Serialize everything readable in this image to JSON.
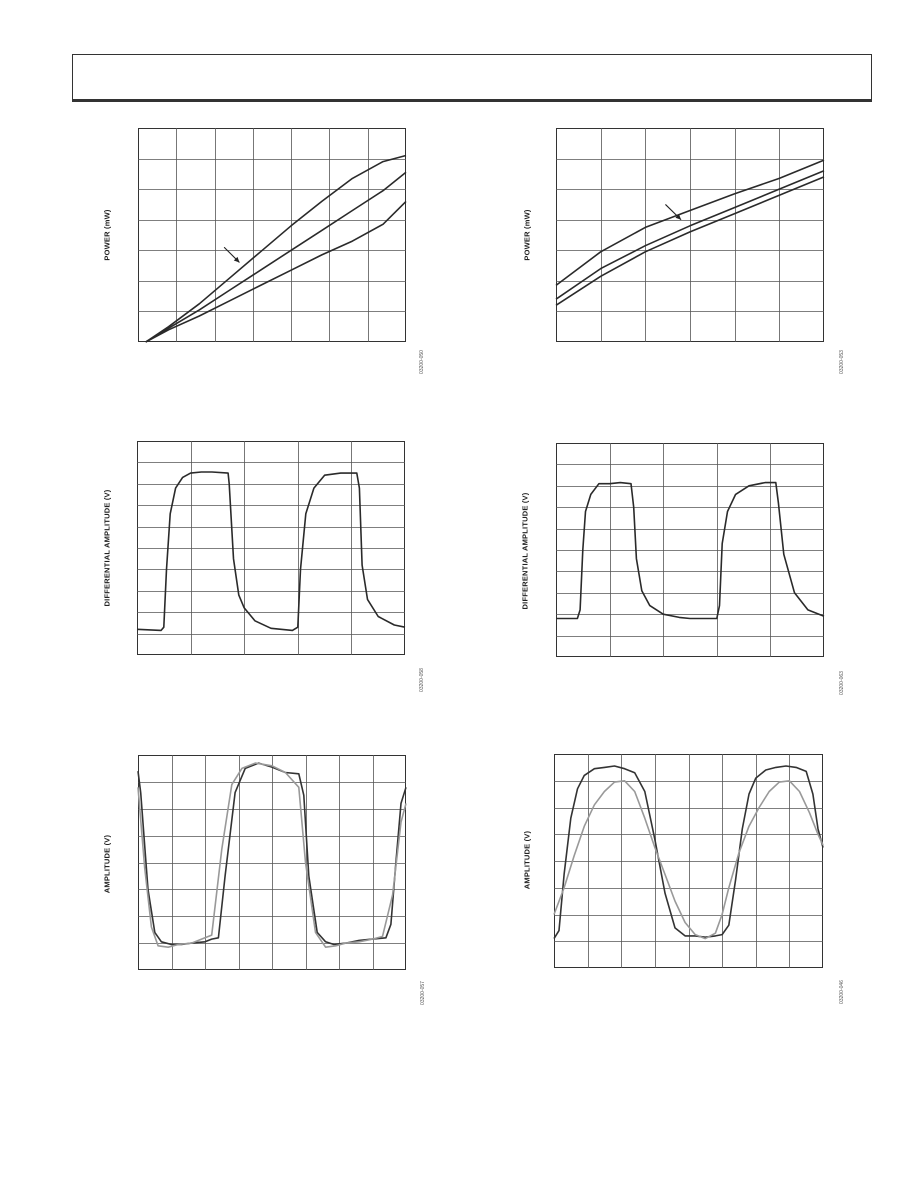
{
  "header": {
    "title": ""
  },
  "chart_data": [
    {
      "type": "line",
      "ylabel": "POWER (mW)",
      "figure_id": "03200-050",
      "grid": true,
      "xlim": [
        0,
        7
      ],
      "ylim": [
        0,
        7
      ],
      "series": [
        {
          "x": [
            0.2,
            0.8,
            1.6,
            2.4,
            3.2,
            4.0,
            4.8,
            5.6,
            6.4,
            7.0
          ],
          "y": [
            0.0,
            0.5,
            1.25,
            2.1,
            2.95,
            3.8,
            4.6,
            5.35,
            5.9,
            6.1
          ]
        },
        {
          "x": [
            0.2,
            0.8,
            1.6,
            2.4,
            3.2,
            4.0,
            4.8,
            5.6,
            6.4,
            7.0
          ],
          "y": [
            0.0,
            0.45,
            1.05,
            1.7,
            2.35,
            3.0,
            3.65,
            4.3,
            4.95,
            5.55
          ]
        },
        {
          "x": [
            0.2,
            0.8,
            1.6,
            2.4,
            3.2,
            4.0,
            4.8,
            5.6,
            6.4,
            7.0
          ],
          "y": [
            0.0,
            0.4,
            0.85,
            1.35,
            1.85,
            2.35,
            2.85,
            3.3,
            3.85,
            4.6
          ]
        }
      ],
      "annotations": [
        {
          "type": "arrow",
          "from": [
            2.25,
            3.1
          ],
          "to": [
            2.65,
            2.6
          ]
        }
      ]
    },
    {
      "type": "line",
      "ylabel": "POWER (mW)",
      "figure_id": "03200-053",
      "grid": true,
      "xlim": [
        0,
        6
      ],
      "ylim": [
        0,
        7
      ],
      "series": [
        {
          "x": [
            0,
            1,
            2,
            3,
            4,
            5,
            6
          ],
          "y": [
            1.85,
            2.95,
            3.75,
            4.3,
            4.85,
            5.35,
            5.95
          ]
        },
        {
          "x": [
            0,
            1,
            2,
            3,
            4,
            5,
            6
          ],
          "y": [
            1.4,
            2.4,
            3.15,
            3.8,
            4.4,
            5.0,
            5.6
          ]
        },
        {
          "x": [
            0,
            1,
            2,
            3,
            4,
            5,
            6
          ],
          "y": [
            1.2,
            2.15,
            2.95,
            3.6,
            4.2,
            4.8,
            5.4
          ]
        }
      ],
      "annotations": [
        {
          "type": "arrow",
          "from": [
            2.45,
            4.5
          ],
          "to": [
            2.8,
            4.0
          ]
        }
      ]
    },
    {
      "type": "line",
      "ylabel": "DIFFERENTIAL AMPLITUDE (V)",
      "figure_id": "03200-058",
      "grid": true,
      "xlim": [
        0,
        5
      ],
      "ylim": [
        0,
        10
      ],
      "series": [
        {
          "x": [
            0,
            0.45,
            0.5,
            0.55,
            0.62,
            0.72,
            0.85,
            1.0,
            1.2,
            1.4,
            1.7,
            1.72,
            1.8,
            1.9,
            2.0,
            2.2,
            2.5,
            2.9,
            3.0,
            3.05,
            3.15,
            3.3,
            3.5,
            3.8,
            4.1,
            4.15,
            4.2,
            4.3,
            4.5,
            4.8,
            5.0
          ],
          "y": [
            1.2,
            1.15,
            1.3,
            4.0,
            6.6,
            7.8,
            8.3,
            8.5,
            8.55,
            8.55,
            8.5,
            8.0,
            4.5,
            2.8,
            2.2,
            1.6,
            1.25,
            1.15,
            1.3,
            4.0,
            6.6,
            7.8,
            8.4,
            8.5,
            8.5,
            7.8,
            4.2,
            2.6,
            1.8,
            1.4,
            1.3
          ]
        }
      ]
    },
    {
      "type": "line",
      "ylabel": "DIFFERENTIAL AMPLITUDE (V)",
      "figure_id": "03200-063",
      "grid": true,
      "xlim": [
        0,
        5
      ],
      "ylim": [
        0,
        10
      ],
      "series": [
        {
          "x": [
            0,
            0.4,
            0.45,
            0.5,
            0.55,
            0.65,
            0.8,
            1.0,
            1.2,
            1.4,
            1.45,
            1.5,
            1.6,
            1.75,
            2.0,
            2.3,
            2.5,
            3.0,
            3.05,
            3.1,
            3.2,
            3.35,
            3.6,
            3.9,
            4.1,
            4.15,
            4.25,
            4.45,
            4.7,
            5.0
          ],
          "y": [
            1.8,
            1.8,
            2.2,
            5.0,
            6.8,
            7.6,
            8.1,
            8.1,
            8.15,
            8.1,
            7.0,
            4.6,
            3.1,
            2.4,
            2.0,
            1.85,
            1.8,
            1.8,
            2.4,
            5.3,
            6.8,
            7.6,
            8.0,
            8.15,
            8.15,
            7.2,
            4.8,
            3.0,
            2.2,
            1.9
          ]
        }
      ]
    },
    {
      "type": "line",
      "ylabel": "AMPLITUDE (V)",
      "figure_id": "03200-057",
      "grid": true,
      "xlim": [
        0,
        8
      ],
      "ylim": [
        0,
        8
      ],
      "series": [
        {
          "color": "#333333",
          "x": [
            0,
            0.08,
            0.3,
            0.5,
            0.7,
            1.0,
            1.3,
            1.6,
            2.0,
            2.2,
            2.4,
            2.6,
            2.9,
            3.2,
            3.6,
            4.0,
            4.4,
            4.8,
            4.95,
            5.1,
            5.35,
            5.6,
            5.85,
            6.2,
            6.6,
            7.0,
            7.4,
            7.55,
            7.7,
            7.85,
            8.0
          ],
          "y": [
            7.4,
            6.6,
            3.0,
            1.4,
            1.05,
            0.95,
            0.95,
            1.0,
            1.05,
            1.15,
            1.2,
            3.5,
            6.6,
            7.5,
            7.7,
            7.55,
            7.35,
            7.3,
            6.5,
            3.5,
            1.4,
            1.05,
            0.95,
            1.0,
            1.1,
            1.15,
            1.2,
            1.7,
            4.0,
            6.2,
            6.8
          ]
        },
        {
          "color": "#999999",
          "x": [
            0,
            0.2,
            0.4,
            0.6,
            0.9,
            1.2,
            1.6,
            2.0,
            2.2,
            2.5,
            2.8,
            3.1,
            3.5,
            4.0,
            4.4,
            4.8,
            5.0,
            5.3,
            5.6,
            5.9,
            6.2,
            6.6,
            7.0,
            7.3,
            7.6,
            7.85,
            8.0
          ],
          "y": [
            6.8,
            3.8,
            1.6,
            0.9,
            0.85,
            0.95,
            1.0,
            1.2,
            1.3,
            4.5,
            6.9,
            7.5,
            7.7,
            7.6,
            7.35,
            6.8,
            4.0,
            1.4,
            0.85,
            0.9,
            1.0,
            1.05,
            1.15,
            1.25,
            2.8,
            5.5,
            6.2
          ]
        }
      ]
    },
    {
      "type": "line",
      "ylabel": "AMPLITUDE (V)",
      "figure_id": "03200-046",
      "grid": true,
      "xlim": [
        0,
        8
      ],
      "ylim": [
        0,
        8
      ],
      "series": [
        {
          "color": "#333333",
          "x": [
            0,
            0.15,
            0.3,
            0.5,
            0.7,
            0.9,
            1.2,
            1.5,
            1.8,
            2.1,
            2.4,
            2.7,
            3.0,
            3.3,
            3.6,
            3.9,
            4.2,
            4.5,
            4.8,
            5.0,
            5.2,
            5.4,
            5.6,
            5.8,
            6.0,
            6.3,
            6.6,
            6.9,
            7.2,
            7.5,
            7.7,
            7.85,
            8.0
          ],
          "y": [
            1.1,
            1.4,
            3.5,
            5.6,
            6.7,
            7.2,
            7.45,
            7.5,
            7.55,
            7.45,
            7.3,
            6.6,
            4.8,
            2.8,
            1.5,
            1.2,
            1.2,
            1.15,
            1.2,
            1.25,
            1.6,
            3.3,
            5.2,
            6.5,
            7.1,
            7.4,
            7.5,
            7.55,
            7.5,
            7.35,
            6.5,
            5.2,
            4.5
          ]
        },
        {
          "color": "#999999",
          "x": [
            0,
            0.3,
            0.6,
            0.9,
            1.2,
            1.5,
            1.8,
            2.1,
            2.4,
            2.7,
            3.0,
            3.3,
            3.6,
            3.9,
            4.2,
            4.5,
            4.8,
            5.0,
            5.2,
            5.5,
            5.8,
            6.1,
            6.4,
            6.7,
            7.0,
            7.3,
            7.6,
            7.85,
            8.0
          ],
          "y": [
            2.0,
            3.0,
            4.2,
            5.3,
            6.1,
            6.6,
            6.95,
            7.0,
            6.6,
            5.6,
            4.5,
            3.5,
            2.5,
            1.7,
            1.25,
            1.1,
            1.3,
            2.0,
            3.0,
            4.3,
            5.3,
            6.0,
            6.6,
            6.95,
            7.0,
            6.6,
            5.8,
            5.0,
            4.6
          ]
        }
      ]
    }
  ]
}
